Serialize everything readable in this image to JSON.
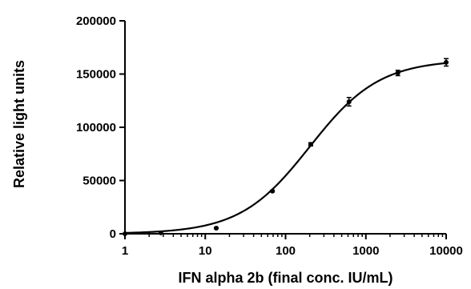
{
  "chart_data": {
    "type": "scatter",
    "title": "",
    "xlabel": "IFN alpha 2b (final conc. IU/mL)",
    "ylabel": "Relative light units",
    "x_scale": "log10",
    "xlim": [
      1,
      10000
    ],
    "ylim": [
      0,
      200000
    ],
    "x_ticks": [
      1,
      10,
      100,
      1000,
      10000
    ],
    "x_tick_labels": [
      "1",
      "10",
      "100",
      "1000",
      "10000"
    ],
    "y_ticks": [
      0,
      50000,
      100000,
      150000,
      200000
    ],
    "y_tick_labels": [
      "0",
      "50000",
      "100000",
      "150000",
      "200000"
    ],
    "grid": false,
    "legend": "none",
    "series": [
      {
        "points": [
          {
            "x": 1,
            "y": 0,
            "err": 0
          },
          {
            "x": 2.8,
            "y": 800,
            "err": 0
          },
          {
            "x": 13.7,
            "y": 5300,
            "err": 400
          },
          {
            "x": 68.6,
            "y": 40000,
            "err": 700
          },
          {
            "x": 206,
            "y": 84000,
            "err": 1500
          },
          {
            "x": 617,
            "y": 124000,
            "err": 4000
          },
          {
            "x": 2500,
            "y": 151000,
            "err": 2500
          },
          {
            "x": 10000,
            "y": 161000,
            "err": 3500
          }
        ],
        "fit": {
          "model": "4PL",
          "bottom": 0,
          "top": 163500,
          "ec50": 200,
          "hill": 1.0
        }
      }
    ]
  }
}
